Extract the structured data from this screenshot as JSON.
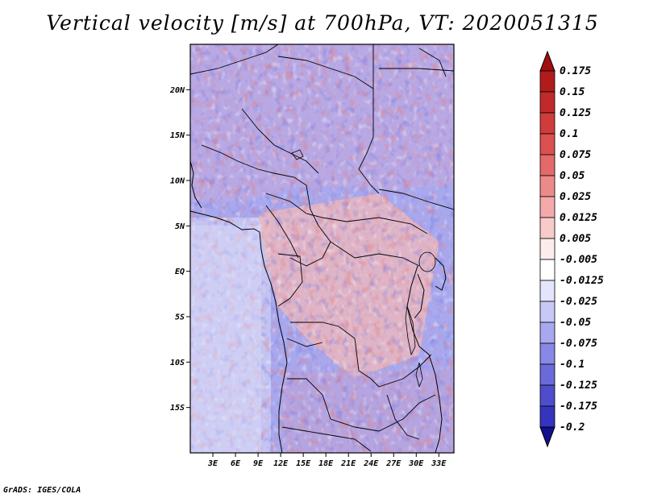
{
  "title": "Vertical velocity [m/s] at 700hPa, VT: 2020051315",
  "credit": "GrADS: IGES/COLA",
  "chart_data": {
    "type": "heatmap",
    "title": "Vertical velocity [m/s] at 700hPa, VT: 2020051315",
    "variable": "Vertical velocity",
    "units": "m/s",
    "level": "700hPa",
    "valid_time": "2020051315",
    "xlabel": "",
    "ylabel": "",
    "xlim": [
      0,
      35
    ],
    "ylim": [
      -20,
      25
    ],
    "x_ticks": [
      {
        "value": 3,
        "label": "3E"
      },
      {
        "value": 6,
        "label": "6E"
      },
      {
        "value": 9,
        "label": "9E"
      },
      {
        "value": 12,
        "label": "12E"
      },
      {
        "value": 15,
        "label": "15E"
      },
      {
        "value": 18,
        "label": "18E"
      },
      {
        "value": 21,
        "label": "21E"
      },
      {
        "value": 24,
        "label": "24E"
      },
      {
        "value": 27,
        "label": "27E"
      },
      {
        "value": 30,
        "label": "30E"
      },
      {
        "value": 33,
        "label": "33E"
      }
    ],
    "y_ticks": [
      {
        "value": 20,
        "label": "20N"
      },
      {
        "value": 15,
        "label": "15N"
      },
      {
        "value": 10,
        "label": "10N"
      },
      {
        "value": 5,
        "label": "5N"
      },
      {
        "value": 0,
        "label": "EQ"
      },
      {
        "value": -5,
        "label": "5S"
      },
      {
        "value": -10,
        "label": "10S"
      },
      {
        "value": -15,
        "label": "15S"
      }
    ],
    "colorbar": {
      "labels": [
        "0.175",
        "0.15",
        "0.125",
        "0.1",
        "0.075",
        "0.05",
        "0.025",
        "0.0125",
        "0.005",
        "-0.005",
        "-0.0125",
        "-0.025",
        "-0.05",
        "-0.075",
        "-0.1",
        "-0.125",
        "-0.175",
        "-0.2"
      ],
      "colors": [
        "#a01010",
        "#b01c1c",
        "#c02a2a",
        "#d03c3c",
        "#dc5050",
        "#e46a6a",
        "#ec8a8a",
        "#f4aaaa",
        "#f8caca",
        "#fcecec",
        "#ffffff",
        "#e4e4fc",
        "#c8c8f6",
        "#a8a8f0",
        "#8888e6",
        "#6a6ada",
        "#4e4ecc",
        "#3434bc",
        "#2020a8",
        "#10108c"
      ]
    },
    "field_description": "Mixed positive/negative noisy field; strongest upward and downward motion in the Sahel/Sahara (north) and southern Africa (south), weak downward motion over the Atlantic Ocean, mostly weak upward motion over the Congo basin."
  }
}
